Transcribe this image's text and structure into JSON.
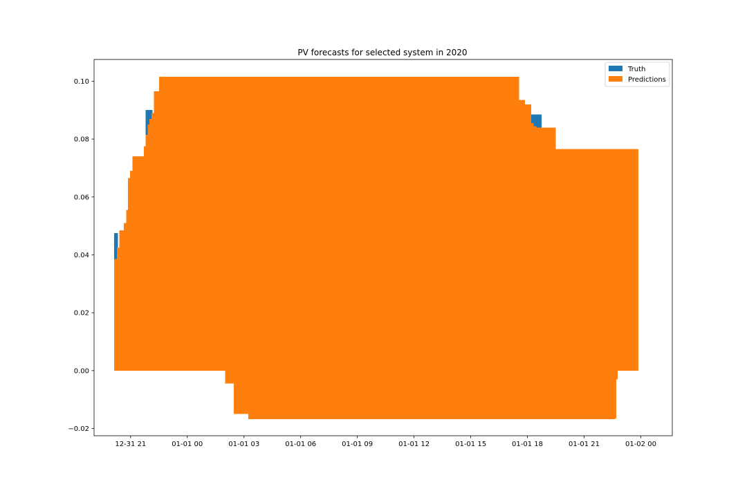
{
  "chart_data": {
    "type": "area",
    "title": "PV forecasts for selected system in 2020",
    "xlabel": "",
    "ylabel": "",
    "x_unit": "hours",
    "xlim": [
      "12-31 19:04",
      "01-02 01:40"
    ],
    "ylim": [
      -0.0225,
      0.1075
    ],
    "legend_position": "top-right",
    "grid": false,
    "colors": {
      "truth": "#1f77b4",
      "predictions": "#ff7f0e",
      "axes": "#000000",
      "background": "#ffffff"
    },
    "x_ticks": [
      {
        "label": "12-31 21",
        "x": "12-31 21:00"
      },
      {
        "label": "01-01 00",
        "x": "01-01 00:00"
      },
      {
        "label": "01-01 03",
        "x": "01-01 03:00"
      },
      {
        "label": "01-01 06",
        "x": "01-01 06:00"
      },
      {
        "label": "01-01 09",
        "x": "01-01 09:00"
      },
      {
        "label": "01-01 12",
        "x": "01-01 12:00"
      },
      {
        "label": "01-01 15",
        "x": "01-01 15:00"
      },
      {
        "label": "01-01 18",
        "x": "01-01 18:00"
      },
      {
        "label": "01-01 21",
        "x": "01-01 21:00"
      },
      {
        "label": "01-02 00",
        "x": "01-02 00:00"
      }
    ],
    "y_ticks": [
      {
        "label": "−0.02",
        "y": -0.02
      },
      {
        "label": "0.00",
        "y": 0.0
      },
      {
        "label": "0.02",
        "y": 0.02
      },
      {
        "label": "0.04",
        "y": 0.04
      },
      {
        "label": "0.06",
        "y": 0.06
      },
      {
        "label": "0.08",
        "y": 0.08
      },
      {
        "label": "0.10",
        "y": 0.1
      }
    ],
    "series": [
      {
        "name": "Truth",
        "key": "truth",
        "bars": [
          {
            "x0": "12-31 20:08",
            "x1": "12-31 20:20",
            "y0": 0.0,
            "y1": 0.0475
          },
          {
            "x0": "12-31 21:48",
            "x1": "12-31 22:10",
            "y0": 0.0,
            "y1": 0.09
          },
          {
            "x0": "01-01 18:00",
            "x1": "01-01 18:45",
            "y0": 0.0,
            "y1": 0.0885
          }
        ]
      },
      {
        "name": "Predictions",
        "key": "predictions",
        "bars": [
          {
            "x0": "12-31 20:08",
            "x1": "12-31 20:16",
            "y0": 0.0,
            "y1": 0.0385
          },
          {
            "x0": "12-31 20:16",
            "x1": "12-31 20:24",
            "y0": 0.0,
            "y1": 0.0425
          },
          {
            "x0": "12-31 20:24",
            "x1": "12-31 20:38",
            "y0": 0.0,
            "y1": 0.0485
          },
          {
            "x0": "12-31 20:38",
            "x1": "12-31 20:46",
            "y0": 0.0,
            "y1": 0.051
          },
          {
            "x0": "12-31 20:46",
            "x1": "12-31 20:52",
            "y0": 0.0,
            "y1": 0.0555
          },
          {
            "x0": "12-31 20:52",
            "x1": "12-31 20:58",
            "y0": 0.0,
            "y1": 0.0665
          },
          {
            "x0": "12-31 20:58",
            "x1": "12-31 21:06",
            "y0": 0.0,
            "y1": 0.069
          },
          {
            "x0": "12-31 21:06",
            "x1": "12-31 21:42",
            "y0": 0.0,
            "y1": 0.074
          },
          {
            "x0": "12-31 21:42",
            "x1": "12-31 21:48",
            "y0": 0.0,
            "y1": 0.0775
          },
          {
            "x0": "12-31 21:48",
            "x1": "12-31 21:54",
            "y0": 0.0,
            "y1": 0.0815
          },
          {
            "x0": "12-31 21:54",
            "x1": "12-31 22:00",
            "y0": 0.0,
            "y1": 0.085
          },
          {
            "x0": "12-31 22:00",
            "x1": "12-31 22:06",
            "y0": 0.0,
            "y1": 0.087
          },
          {
            "x0": "12-31 22:06",
            "x1": "12-31 22:14",
            "y0": 0.0,
            "y1": 0.089
          },
          {
            "x0": "12-31 22:14",
            "x1": "12-31 22:30",
            "y0": 0.0,
            "y1": 0.0965
          },
          {
            "x0": "12-31 22:30",
            "x1": "01-01 02:00",
            "y0": 0.0,
            "y1": 0.1015
          },
          {
            "x0": "01-01 02:00",
            "x1": "01-01 02:28",
            "y0": -0.0045,
            "y1": 0.1015
          },
          {
            "x0": "01-01 02:28",
            "x1": "01-01 03:14",
            "y0": -0.015,
            "y1": 0.1015
          },
          {
            "x0": "01-01 03:14",
            "x1": "01-01 17:34",
            "y0": -0.0168,
            "y1": 0.1015
          },
          {
            "x0": "01-01 17:34",
            "x1": "01-01 17:52",
            "y0": -0.0168,
            "y1": 0.0935
          },
          {
            "x0": "01-01 17:52",
            "x1": "01-01 18:12",
            "y0": -0.0168,
            "y1": 0.092
          },
          {
            "x0": "01-01 18:12",
            "x1": "01-01 18:20",
            "y0": -0.0168,
            "y1": 0.0855
          },
          {
            "x0": "01-01 18:20",
            "x1": "01-01 18:28",
            "y0": -0.0168,
            "y1": 0.0845
          },
          {
            "x0": "01-01 18:28",
            "x1": "01-01 19:30",
            "y0": -0.0168,
            "y1": 0.084
          },
          {
            "x0": "01-01 19:30",
            "x1": "01-01 22:38",
            "y0": -0.0168,
            "y1": 0.0765
          },
          {
            "x0": "01-01 22:38",
            "x1": "01-01 22:42",
            "y0": -0.0165,
            "y1": 0.0765
          },
          {
            "x0": "01-01 22:42",
            "x1": "01-01 22:46",
            "y0": -0.003,
            "y1": 0.0765
          },
          {
            "x0": "01-01 22:46",
            "x1": "01-01 23:52",
            "y0": 0.0,
            "y1": 0.0765
          }
        ]
      }
    ]
  }
}
